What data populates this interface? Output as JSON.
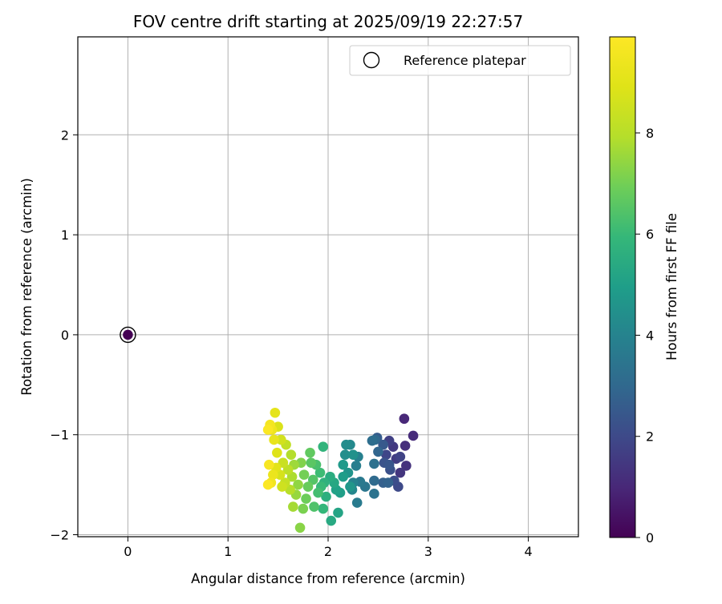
{
  "chart_data": {
    "type": "scatter",
    "title": "FOV centre drift starting at 2025/09/19 22:27:57",
    "xlabel": "Angular distance from reference (arcmin)",
    "ylabel": "Rotation from reference (arcmin)",
    "xlim": [
      -0.5,
      4.5
    ],
    "ylim": [
      -2.02,
      2.98
    ],
    "xticks": [
      "0",
      "1",
      "2",
      "3",
      "4"
    ],
    "yticks": [
      "−2",
      "−1",
      "0",
      "1",
      "2"
    ],
    "grid": true,
    "legend": {
      "position": "top-right",
      "entries": [
        "Reference platepar"
      ]
    },
    "reference_point": {
      "x": 0,
      "y": 0,
      "hours": 0
    },
    "colorbar": {
      "label": "Hours from first FF file",
      "range": [
        0,
        9.9
      ],
      "ticks": [
        "0",
        "2",
        "4",
        "6",
        "8"
      ],
      "colormap": "viridis"
    },
    "points": [
      [
        2.76,
        -0.84,
        1.0
      ],
      [
        2.85,
        -1.01,
        1.1
      ],
      [
        2.77,
        -1.11,
        1.2
      ],
      [
        2.78,
        -1.31,
        1.3
      ],
      [
        2.72,
        -1.38,
        1.4
      ],
      [
        2.65,
        -1.12,
        1.5
      ],
      [
        2.68,
        -1.24,
        1.6
      ],
      [
        2.61,
        -1.06,
        1.7
      ],
      [
        2.72,
        -1.22,
        1.8
      ],
      [
        2.58,
        -1.2,
        1.9
      ],
      [
        2.7,
        -1.52,
        2.0
      ],
      [
        2.66,
        -1.46,
        2.1
      ],
      [
        2.62,
        -1.35,
        2.2
      ],
      [
        2.56,
        -1.28,
        2.3
      ],
      [
        2.61,
        -1.3,
        2.4
      ],
      [
        2.55,
        -1.1,
        2.5
      ],
      [
        2.49,
        -1.03,
        2.6
      ],
      [
        2.55,
        -1.48,
        2.7
      ],
      [
        2.6,
        -1.48,
        2.8
      ],
      [
        2.5,
        -1.17,
        2.9
      ],
      [
        2.47,
        -1.05,
        3.0
      ],
      [
        2.46,
        -1.46,
        3.1
      ],
      [
        2.44,
        -1.06,
        3.2
      ],
      [
        2.46,
        -1.29,
        3.3
      ],
      [
        2.46,
        -1.59,
        3.4
      ],
      [
        2.37,
        -1.52,
        3.5
      ],
      [
        2.32,
        -1.47,
        3.6
      ],
      [
        2.29,
        -1.68,
        3.7
      ],
      [
        2.28,
        -1.31,
        3.8
      ],
      [
        2.3,
        -1.22,
        3.9
      ],
      [
        2.25,
        -1.48,
        4.0
      ],
      [
        2.24,
        -1.55,
        4.1
      ],
      [
        2.22,
        -1.1,
        4.2
      ],
      [
        2.18,
        -1.1,
        4.3
      ],
      [
        2.17,
        -1.2,
        4.4
      ],
      [
        2.25,
        -1.2,
        4.5
      ],
      [
        2.2,
        -1.38,
        4.6
      ],
      [
        2.22,
        -1.52,
        4.7
      ],
      [
        2.15,
        -1.3,
        4.8
      ],
      [
        2.15,
        -1.42,
        4.9
      ],
      [
        2.12,
        -1.58,
        5.0
      ],
      [
        2.08,
        -1.55,
        5.1
      ],
      [
        2.1,
        -1.78,
        5.2
      ],
      [
        2.06,
        -1.48,
        5.3
      ],
      [
        2.03,
        -1.86,
        5.4
      ],
      [
        2.02,
        -1.42,
        5.5
      ],
      [
        1.98,
        -1.62,
        5.6
      ],
      [
        1.96,
        -1.48,
        5.7
      ],
      [
        1.95,
        -1.12,
        5.8
      ],
      [
        1.95,
        -1.74,
        5.9
      ],
      [
        1.93,
        -1.52,
        6.0
      ],
      [
        1.92,
        -1.38,
        6.1
      ],
      [
        1.9,
        -1.58,
        6.2
      ],
      [
        1.88,
        -1.3,
        6.3
      ],
      [
        1.86,
        -1.72,
        6.4
      ],
      [
        1.85,
        -1.45,
        6.5
      ],
      [
        1.83,
        -1.28,
        6.6
      ],
      [
        1.82,
        -1.18,
        6.7
      ],
      [
        1.8,
        -1.52,
        6.8
      ],
      [
        1.78,
        -1.64,
        6.9
      ],
      [
        1.76,
        -1.4,
        7.0
      ],
      [
        1.75,
        -1.74,
        7.1
      ],
      [
        1.73,
        -1.28,
        7.2
      ],
      [
        1.72,
        -1.93,
        7.3
      ],
      [
        1.7,
        -1.5,
        7.4
      ],
      [
        1.68,
        -1.6,
        7.5
      ],
      [
        1.66,
        -1.3,
        7.6
      ],
      [
        1.65,
        -1.72,
        7.7
      ],
      [
        1.64,
        -1.42,
        7.8
      ],
      [
        1.63,
        -1.2,
        7.9
      ],
      [
        1.62,
        -1.55,
        8.0
      ],
      [
        1.6,
        -1.35,
        8.1
      ],
      [
        1.58,
        -1.1,
        8.2
      ],
      [
        1.57,
        -1.48,
        8.3
      ],
      [
        1.55,
        -1.28,
        8.4
      ],
      [
        1.54,
        -1.52,
        8.5
      ],
      [
        1.53,
        -1.05,
        8.6
      ],
      [
        1.52,
        -1.4,
        8.7
      ],
      [
        1.5,
        -0.92,
        8.8
      ],
      [
        1.49,
        -1.18,
        8.9
      ],
      [
        1.48,
        -1.33,
        9.0
      ],
      [
        1.47,
        -0.78,
        9.1
      ],
      [
        1.46,
        -1.05,
        9.2
      ],
      [
        1.45,
        -1.4,
        9.3
      ],
      [
        1.44,
        -0.95,
        9.4
      ],
      [
        1.43,
        -1.48,
        9.5
      ],
      [
        1.42,
        -0.9,
        9.6
      ],
      [
        1.41,
        -1.3,
        9.7
      ],
      [
        1.4,
        -0.95,
        9.8
      ],
      [
        1.4,
        -1.5,
        9.85
      ]
    ]
  }
}
